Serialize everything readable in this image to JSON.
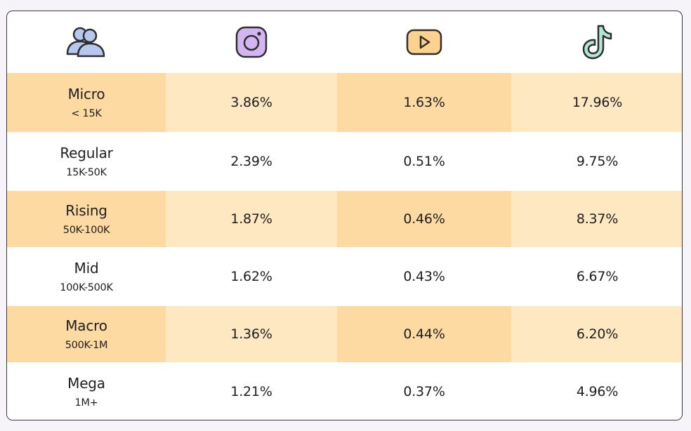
{
  "chart_data": {
    "type": "table",
    "columns": [
      {
        "icon": "users-icon"
      },
      {
        "icon": "instagram-icon"
      },
      {
        "icon": "youtube-icon"
      },
      {
        "icon": "tiktok-icon"
      }
    ],
    "rows": [
      {
        "tier": "Micro",
        "range": "< 15K",
        "instagram": "3.86%",
        "youtube": "1.63%",
        "tiktok": "17.96%"
      },
      {
        "tier": "Regular",
        "range": "15K-50K",
        "instagram": "2.39%",
        "youtube": "0.51%",
        "tiktok": "9.75%"
      },
      {
        "tier": "Rising",
        "range": "50K-100K",
        "instagram": "1.87%",
        "youtube": "0.46%",
        "tiktok": "8.37%"
      },
      {
        "tier": "Mid",
        "range": "100K-500K",
        "instagram": "1.62%",
        "youtube": "0.43%",
        "tiktok": "6.67%"
      },
      {
        "tier": "Macro",
        "range": "500K-1M",
        "instagram": "1.36%",
        "youtube": "0.44%",
        "tiktok": "6.20%"
      },
      {
        "tier": "Mega",
        "range": "1M+",
        "instagram": "1.21%",
        "youtube": "0.37%",
        "tiktok": "4.96%"
      }
    ]
  },
  "colors": {
    "stripe_light": "#fde8c1",
    "stripe_dark": "#fcdaa2",
    "white": "#ffffff",
    "users_icon": "#b6c8ee",
    "instagram_icon": "#d3b5f2",
    "youtube_icon": "#fcd28e",
    "tiktok_icon": "#b3e6d6",
    "stroke": "#2e2e2e"
  }
}
